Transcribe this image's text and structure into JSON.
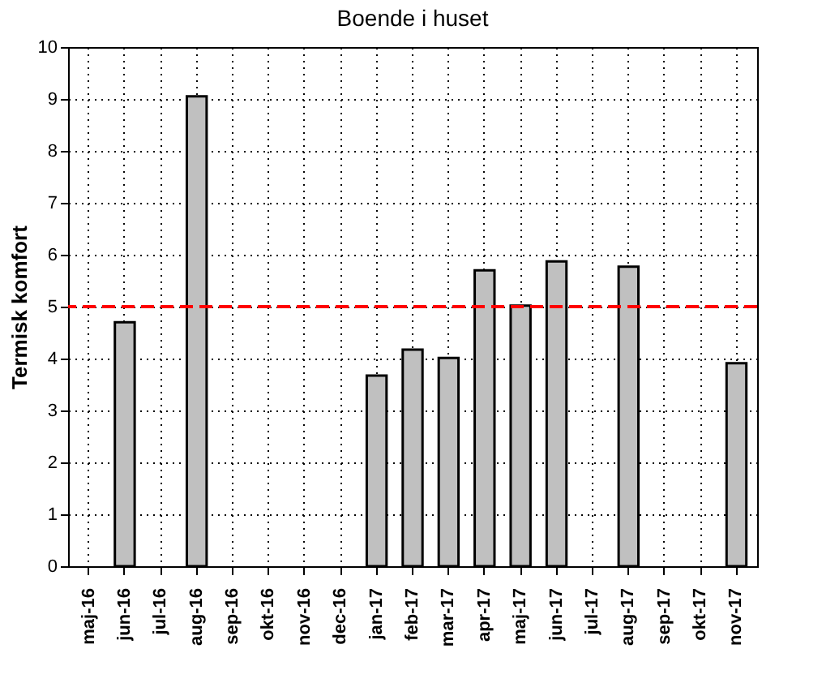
{
  "chart_data": {
    "type": "bar",
    "title": "Boende i huset",
    "ylabel": "Termisk komfort",
    "categories": [
      "maj-16",
      "jun-16",
      "jul-16",
      "aug-16",
      "sep-16",
      "okt-16",
      "nov-16",
      "dec-16",
      "jan-17",
      "feb-17",
      "mar-17",
      "apr-17",
      "maj-17",
      "jun-17",
      "jul-17",
      "aug-17",
      "sep-17",
      "okt-17",
      "nov-17"
    ],
    "values": [
      null,
      4.7,
      null,
      9.05,
      null,
      null,
      null,
      null,
      3.67,
      4.17,
      4.01,
      5.7,
      5.02,
      5.87,
      null,
      5.77,
      null,
      null,
      3.91
    ],
    "color": "#c0c0c0",
    "ylim": [
      0,
      10
    ],
    "yticks": [
      0,
      1,
      2,
      3,
      4,
      5,
      6,
      7,
      8,
      9,
      10
    ],
    "grid": true,
    "ref_lines": [
      {
        "axis": "y",
        "value": 5,
        "color": "#ff0000",
        "line_style": "dashed"
      }
    ]
  }
}
